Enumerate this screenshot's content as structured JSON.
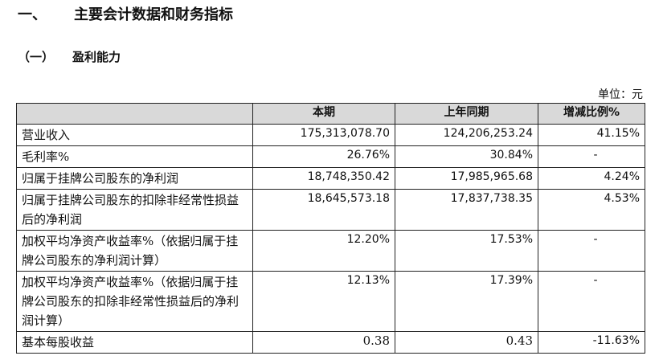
{
  "section": {
    "number": "一、",
    "title": "主要会计数据和财务指标"
  },
  "subsection": {
    "number": "（一）",
    "title": "盈利能力"
  },
  "unit_label": "单位：元",
  "table": {
    "headers": [
      "",
      "本期",
      "上年同期",
      "增减比例%"
    ],
    "rows": [
      {
        "label": "营业收入",
        "current": "175,313,078.70",
        "previous": "124,206,253.24",
        "change": "41.15%"
      },
      {
        "label": "毛利率%",
        "current": "26.76%",
        "previous": "30.84%",
        "change": "-"
      },
      {
        "label": "归属于挂牌公司股东的净利润",
        "current": "18,748,350.42",
        "previous": "17,985,965.68",
        "change": "4.24%"
      },
      {
        "label": "归属于挂牌公司股东的扣除非经常性损益后的净利润",
        "current": "18,645,573.18",
        "previous": "17,837,738.35",
        "change": "4.53%"
      },
      {
        "label": "加权平均净资产收益率%（依据归属于挂牌公司股东的净利润计算）",
        "current": "12.20%",
        "previous": "17.53%",
        "change": "-"
      },
      {
        "label": "加权平均净资产收益率%（依据归属于挂牌公司股东的扣除非经常性损益后的净利润计算）",
        "current": "12.13%",
        "previous": "17.39%",
        "change": "-"
      },
      {
        "label": "基本每股收益",
        "current": "0.38",
        "previous": "0.43",
        "change": "-11.63%"
      }
    ]
  }
}
